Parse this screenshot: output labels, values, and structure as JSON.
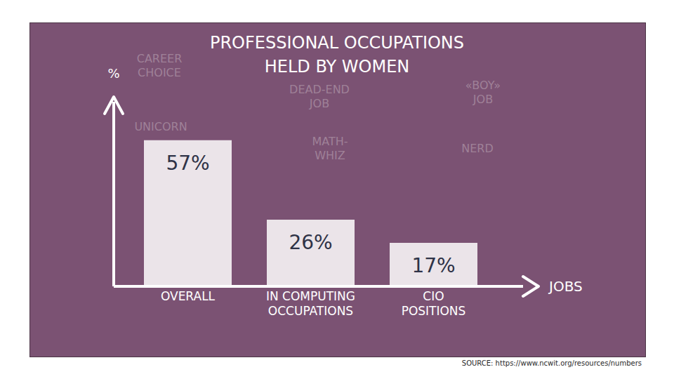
{
  "chart_data": {
    "type": "bar",
    "title": "PROFESSIONAL OCCUPATIONS\nHELD BY WOMEN",
    "x_label": "JOBS",
    "y_label": "%",
    "categories": [
      "OVERALL",
      "IN COMPUTING OCCUPATIONS",
      "CIO POSITIONS"
    ],
    "values": [
      57,
      26,
      17
    ],
    "value_labels": [
      "57%",
      "26%",
      "17%"
    ],
    "color": "#ebe4e9",
    "ylim": [
      0,
      72
    ],
    "yticks": [],
    "tick_labels": "x",
    "data_labels": true,
    "grid": false,
    "source": "SOURCE: https://www.ncwit.org/resources/numbers",
    "annotations": [
      "CAREER CHOICE",
      "UNICORN",
      "DEAD-END JOB",
      "MATH-WHIZ",
      "«BOY» JOB",
      "NERD"
    ]
  }
}
